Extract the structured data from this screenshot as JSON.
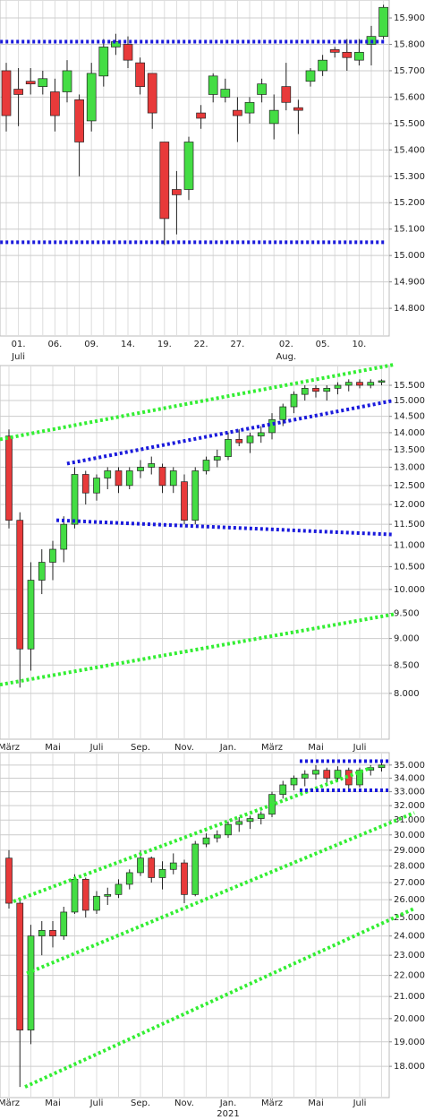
{
  "chart_data": [
    {
      "type": "candlestick",
      "categories": [
        null,
        "01.",
        null,
        null,
        "06.",
        null,
        null,
        "09.",
        null,
        null,
        "14.",
        null,
        null,
        "19.",
        null,
        null,
        "22.",
        null,
        null,
        "27.",
        null,
        null,
        null,
        "02.",
        null,
        null,
        "05.",
        null,
        null,
        "10.",
        null,
        null
      ],
      "categories2": [
        null,
        "Juli",
        null,
        null,
        null,
        null,
        null,
        null,
        null,
        null,
        null,
        null,
        null,
        null,
        null,
        null,
        null,
        null,
        null,
        null,
        null,
        null,
        null,
        "Aug.",
        null,
        null,
        null,
        null,
        null,
        null,
        null,
        null
      ],
      "open": [
        15.7,
        15.63,
        15.66,
        15.64,
        15.62,
        15.62,
        15.59,
        15.51,
        15.68,
        15.79,
        15.8,
        15.73,
        15.69,
        15.43,
        15.25,
        15.25,
        15.54,
        15.61,
        15.6,
        15.55,
        15.54,
        15.61,
        15.5,
        15.64,
        15.56,
        15.66,
        15.7,
        15.78,
        15.77,
        15.74,
        15.8,
        15.83
      ],
      "high": [
        15.73,
        15.71,
        15.71,
        15.7,
        15.67,
        15.74,
        15.61,
        15.73,
        15.82,
        15.84,
        15.83,
        15.75,
        15.69,
        15.43,
        15.32,
        15.45,
        15.57,
        15.69,
        15.67,
        15.6,
        15.6,
        15.67,
        15.61,
        15.73,
        15.59,
        15.71,
        15.76,
        15.79,
        15.82,
        15.82,
        15.87,
        15.95
      ],
      "low": [
        15.47,
        15.49,
        15.61,
        15.61,
        15.47,
        15.58,
        15.3,
        15.47,
        15.64,
        15.76,
        15.71,
        15.61,
        15.48,
        15.04,
        15.08,
        15.21,
        15.48,
        15.58,
        15.58,
        15.43,
        15.5,
        15.58,
        15.44,
        15.55,
        15.46,
        15.64,
        15.68,
        15.75,
        15.7,
        15.72,
        15.72,
        15.82
      ],
      "close": [
        15.53,
        15.61,
        15.65,
        15.67,
        15.53,
        15.7,
        15.43,
        15.69,
        15.79,
        15.81,
        15.74,
        15.64,
        15.54,
        15.14,
        15.23,
        15.43,
        15.52,
        15.68,
        15.63,
        15.53,
        15.58,
        15.65,
        15.55,
        15.58,
        15.55,
        15.7,
        15.74,
        15.77,
        15.75,
        15.77,
        15.83,
        15.94
      ],
      "up_color": "#44dd44",
      "down_color": "#e83a3a",
      "ylim": [
        14.695,
        15.968
      ],
      "log_scale": false,
      "yticks": [
        {
          "value": 14.8,
          "label": "14.800"
        },
        {
          "value": 14.9,
          "label": "14.900"
        },
        {
          "value": 15.0,
          "label": "15.000"
        },
        {
          "value": 15.1,
          "label": "15.100"
        },
        {
          "value": 15.2,
          "label": "15.200"
        },
        {
          "value": 15.3,
          "label": "15.300"
        },
        {
          "value": 15.4,
          "label": "15.400"
        },
        {
          "value": 15.5,
          "label": "15.500"
        },
        {
          "value": 15.6,
          "label": "15.600"
        },
        {
          "value": 15.7,
          "label": "15.700"
        },
        {
          "value": 15.8,
          "label": "15.800"
        },
        {
          "value": 15.9,
          "label": "15.900"
        }
      ],
      "grid": true,
      "lines": [
        {
          "color": "#1a1adc",
          "x": [
            -0.5,
            31.1
          ],
          "values": [
            15.81,
            15.81
          ]
        },
        {
          "color": "#1a1adc",
          "x": [
            -0.5,
            31.1
          ],
          "values": [
            15.05,
            15.05
          ]
        }
      ]
    },
    {
      "type": "candlestick",
      "categories": [
        "März",
        null,
        null,
        null,
        "Mai",
        null,
        null,
        null,
        "Juli",
        null,
        null,
        null,
        "Sep.",
        null,
        null,
        null,
        "Nov.",
        null,
        null,
        null,
        "Jan.",
        null,
        null,
        null,
        "März",
        null,
        null,
        null,
        "Mai",
        null,
        null,
        null,
        "Juli",
        null,
        null
      ],
      "categories2": [
        null,
        null,
        null,
        null,
        null,
        null,
        null,
        null,
        null,
        null,
        null,
        null,
        null,
        null,
        null,
        null,
        null,
        null,
        null,
        null,
        "2021",
        null,
        null,
        null,
        null,
        null,
        null,
        null,
        null,
        null,
        null,
        null,
        null,
        null,
        null
      ],
      "open": [
        13.9,
        11.6,
        8.8,
        10.2,
        10.6,
        10.9,
        11.5,
        12.8,
        12.3,
        12.7,
        12.9,
        12.5,
        12.9,
        13.0,
        13.0,
        12.5,
        12.6,
        11.6,
        12.9,
        13.2,
        13.3,
        13.8,
        13.7,
        13.9,
        14.0,
        14.4,
        14.8,
        15.2,
        15.4,
        15.3,
        15.4,
        15.5,
        15.6,
        15.5,
        15.6
      ],
      "high": [
        14.1,
        11.8,
        10.6,
        10.9,
        11.1,
        11.7,
        13.0,
        12.9,
        12.8,
        13.0,
        13.0,
        13.0,
        13.2,
        13.3,
        13.1,
        13.0,
        12.8,
        13.0,
        13.3,
        13.5,
        14.0,
        14.1,
        14.0,
        14.2,
        14.6,
        14.9,
        15.3,
        15.5,
        15.5,
        15.5,
        15.6,
        15.7,
        15.7,
        15.7,
        15.7
      ],
      "low": [
        11.4,
        8.1,
        8.4,
        9.9,
        10.2,
        10.6,
        11.4,
        12.0,
        12.1,
        12.4,
        12.3,
        12.4,
        12.7,
        12.8,
        12.3,
        12.3,
        11.5,
        11.5,
        12.8,
        13.0,
        13.2,
        13.6,
        13.4,
        13.7,
        13.8,
        14.2,
        14.6,
        15.0,
        15.1,
        15.0,
        15.2,
        15.3,
        15.4,
        15.4,
        15.5
      ],
      "close": [
        11.6,
        8.8,
        10.2,
        10.6,
        10.9,
        11.5,
        12.8,
        12.3,
        12.7,
        12.9,
        12.5,
        12.9,
        13.0,
        13.1,
        12.5,
        12.9,
        11.6,
        12.9,
        13.2,
        13.3,
        13.8,
        13.7,
        13.9,
        14.0,
        14.4,
        14.8,
        15.2,
        15.4,
        15.3,
        15.4,
        15.5,
        15.6,
        15.5,
        15.6,
        15.65
      ],
      "up_color": "#44dd44",
      "down_color": "#e83a3a",
      "ylim": [
        7.25,
        16.17
      ],
      "log_scale": true,
      "yticks": [
        {
          "value": 8,
          "label": "8.000"
        },
        {
          "value": 8.5,
          "label": "8.500"
        },
        {
          "value": 9,
          "label": "9.000"
        },
        {
          "value": 9.5,
          "label": "9.500"
        },
        {
          "value": 10,
          "label": "10.000"
        },
        {
          "value": 10.5,
          "label": "10.500"
        },
        {
          "value": 11,
          "label": "11.000"
        },
        {
          "value": 11.5,
          "label": "11.500"
        },
        {
          "value": 12,
          "label": "12.000"
        },
        {
          "value": 12.5,
          "label": "12.500"
        },
        {
          "value": 13,
          "label": "13.000"
        },
        {
          "value": 13.5,
          "label": "13.500"
        },
        {
          "value": 14,
          "label": "14.000"
        },
        {
          "value": 14.5,
          "label": "14.500"
        },
        {
          "value": 15,
          "label": "15.000"
        },
        {
          "value": 15.5,
          "label": "15.500"
        }
      ],
      "grid": true,
      "lines": [
        {
          "color": "#33ee33",
          "x": [
            -0.82,
            35.1
          ],
          "values": [
            13.8,
            16.2
          ]
        },
        {
          "color": "#33ee33",
          "x": [
            -0.82,
            35.1
          ],
          "values": [
            8.15,
            9.48
          ]
        },
        {
          "color": "#1a1adc",
          "x": [
            5.3,
            35.1
          ],
          "values": [
            13.1,
            15.0
          ]
        },
        {
          "color": "#1a1adc",
          "x": [
            4.33,
            35.1
          ],
          "values": [
            11.6,
            11.25
          ]
        }
      ]
    },
    {
      "type": "candlestick",
      "categories": [
        "März",
        null,
        null,
        null,
        "Mai",
        null,
        null,
        null,
        "Juli",
        null,
        null,
        null,
        "Sep.",
        null,
        null,
        null,
        "Nov.",
        null,
        null,
        null,
        "Jan.",
        null,
        null,
        null,
        "März",
        null,
        null,
        null,
        "Mai",
        null,
        null,
        null,
        "Juli",
        null,
        null
      ],
      "categories2": [
        null,
        null,
        null,
        null,
        null,
        null,
        null,
        null,
        null,
        null,
        null,
        null,
        null,
        null,
        null,
        null,
        null,
        null,
        null,
        null,
        "2021",
        null,
        null,
        null,
        null,
        null,
        null,
        null,
        null,
        null,
        null,
        null,
        null,
        null,
        null
      ],
      "open": [
        28.5,
        25.8,
        19.5,
        24.0,
        24.3,
        24.0,
        25.3,
        27.2,
        25.4,
        26.2,
        26.3,
        26.9,
        27.6,
        28.5,
        27.3,
        27.8,
        28.2,
        26.3,
        29.4,
        29.8,
        30.0,
        30.7,
        30.9,
        31.1,
        31.4,
        32.8,
        33.5,
        34.0,
        34.3,
        34.6,
        34.0,
        34.6,
        33.5,
        34.6,
        34.8
      ],
      "high": [
        29.0,
        26.0,
        24.6,
        24.8,
        24.8,
        25.6,
        27.5,
        27.3,
        26.5,
        26.7,
        27.2,
        27.8,
        29.0,
        28.6,
        28.3,
        28.8,
        28.4,
        29.6,
        30.1,
        30.3,
        30.9,
        31.2,
        31.3,
        31.6,
        33.0,
        33.8,
        34.2,
        34.6,
        35.0,
        34.8,
        34.9,
        34.8,
        34.8,
        35.0,
        35.2
      ],
      "low": [
        25.5,
        17.2,
        18.9,
        23.0,
        23.4,
        23.8,
        25.2,
        25.0,
        25.2,
        25.7,
        26.1,
        26.6,
        27.4,
        27.0,
        26.6,
        27.5,
        25.8,
        26.2,
        29.2,
        29.5,
        29.8,
        30.2,
        30.4,
        30.7,
        31.2,
        32.5,
        33.1,
        33.4,
        33.9,
        33.5,
        33.8,
        33.2,
        33.3,
        34.2,
        34.5
      ],
      "close": [
        25.8,
        19.5,
        24.0,
        24.3,
        24.0,
        25.3,
        27.2,
        25.4,
        26.2,
        26.3,
        26.9,
        27.6,
        28.5,
        27.3,
        27.8,
        28.2,
        26.3,
        29.4,
        29.8,
        30.0,
        30.7,
        30.9,
        31.1,
        31.4,
        32.8,
        33.5,
        34.0,
        34.3,
        34.6,
        34.0,
        34.6,
        33.5,
        34.6,
        34.8,
        35.0
      ],
      "up_color": "#44dd44",
      "down_color": "#e83a3a",
      "ylim": [
        16.8,
        35.97
      ],
      "log_scale": true,
      "yticks": [
        {
          "value": 18,
          "label": "18.000"
        },
        {
          "value": 19,
          "label": "19.000"
        },
        {
          "value": 20,
          "label": "20.000"
        },
        {
          "value": 21,
          "label": "21.000"
        },
        {
          "value": 22,
          "label": "22.000"
        },
        {
          "value": 23,
          "label": "23.000"
        },
        {
          "value": 24,
          "label": "24.000"
        },
        {
          "value": 25,
          "label": "25.000"
        },
        {
          "value": 26,
          "label": "26.000"
        },
        {
          "value": 27,
          "label": "27.000"
        },
        {
          "value": 28,
          "label": "28.000"
        },
        {
          "value": 29,
          "label": "29.000"
        },
        {
          "value": 30,
          "label": "30.000"
        },
        {
          "value": 31,
          "label": "31.000"
        },
        {
          "value": 32,
          "label": "32.000"
        },
        {
          "value": 33,
          "label": "33.000"
        },
        {
          "value": 34,
          "label": "34.000"
        },
        {
          "value": 35,
          "label": "35.000"
        }
      ],
      "grid": true,
      "lines": [
        {
          "color": "#33ee33",
          "x": [
            0.41,
            33.06
          ],
          "values": [
            25.9,
            34.8
          ]
        },
        {
          "color": "#33ee33",
          "x": [
            1.63,
            36.98
          ],
          "values": [
            22.1,
            31.5
          ]
        },
        {
          "color": "#33ee33",
          "x": [
            1.47,
            36.98
          ],
          "values": [
            17.2,
            25.5
          ]
        },
        {
          "color": "#1a1adc",
          "x": [
            26.53,
            34.7
          ],
          "values": [
            35.3,
            35.3
          ]
        },
        {
          "color": "#1a1adc",
          "x": [
            26.53,
            34.7
          ],
          "values": [
            33.1,
            33.1
          ]
        }
      ]
    }
  ]
}
